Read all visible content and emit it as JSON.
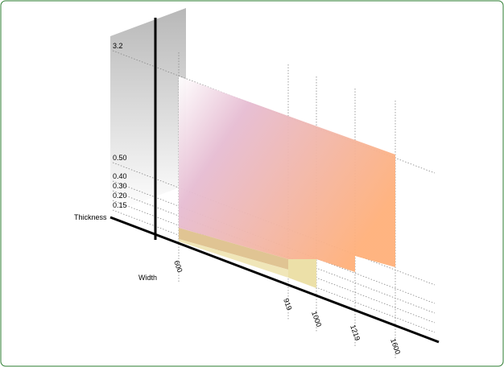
{
  "axes": {
    "thickness": "Thickness",
    "width": "Width"
  },
  "thickness_ticks": [
    "3.2",
    "0.50",
    "0.40",
    "0.30",
    "0.20",
    "0.15"
  ],
  "width_ticks": [
    "600",
    "919",
    "1000",
    "1219",
    "1600"
  ]
}
